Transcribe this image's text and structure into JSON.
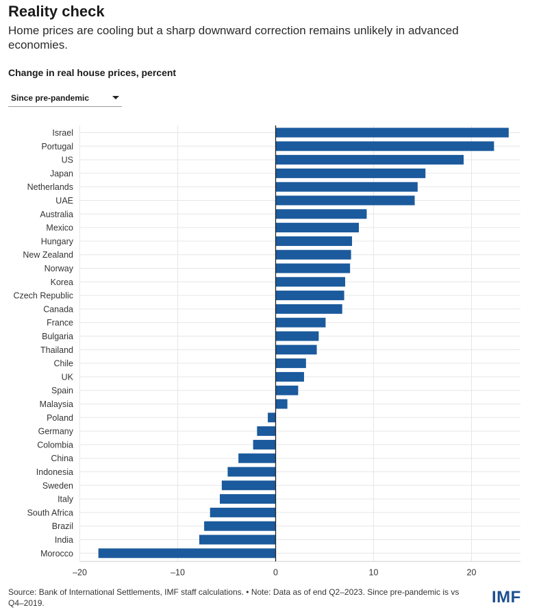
{
  "header": {
    "title": "Reality check",
    "subtitle": "Home prices are cooling but a sharp downward correction remains unlikely in advanced economies.",
    "measure_label": "Change in real house prices, percent"
  },
  "dropdown": {
    "selected": "Since pre-pandemic"
  },
  "footer": {
    "source": "Source: Bank of International Settlements, IMF staff calculations. • Note: Data as of end Q2–2023. Since pre-pandemic is vs Q4–2019.",
    "logo": "IMF"
  },
  "colors": {
    "bar": "#1b5a9c",
    "grid": "#e6e6e6",
    "axis": "#222222"
  },
  "chart_data": {
    "type": "bar",
    "orientation": "horizontal",
    "title": "Change in real house prices, percent",
    "xlabel": "",
    "ylabel": "",
    "xlim": [
      -20,
      25
    ],
    "xticks": [
      -20,
      -10,
      0,
      10,
      20
    ],
    "xtick_labels": [
      "–20",
      "–10",
      "0",
      "10",
      "20"
    ],
    "grid": true,
    "categories": [
      "Israel",
      "Portugal",
      "US",
      "Japan",
      "Netherlands",
      "UAE",
      "Australia",
      "Mexico",
      "Hungary",
      "New Zealand",
      "Norway",
      "Korea",
      "Czech Republic",
      "Canada",
      "France",
      "Bulgaria",
      "Thailand",
      "Chile",
      "UK",
      "Spain",
      "Malaysia",
      "Poland",
      "Germany",
      "Colombia",
      "China",
      "Indonesia",
      "Sweden",
      "Italy",
      "South Africa",
      "Brazil",
      "India",
      "Morocco"
    ],
    "values": [
      23.8,
      22.3,
      19.2,
      15.3,
      14.5,
      14.2,
      9.3,
      8.5,
      7.8,
      7.7,
      7.6,
      7.1,
      7.0,
      6.8,
      5.1,
      4.4,
      4.2,
      3.1,
      2.9,
      2.3,
      1.2,
      -0.8,
      -1.9,
      -2.3,
      -3.8,
      -4.9,
      -5.5,
      -5.7,
      -6.7,
      -7.3,
      -7.8,
      -18.1
    ]
  }
}
